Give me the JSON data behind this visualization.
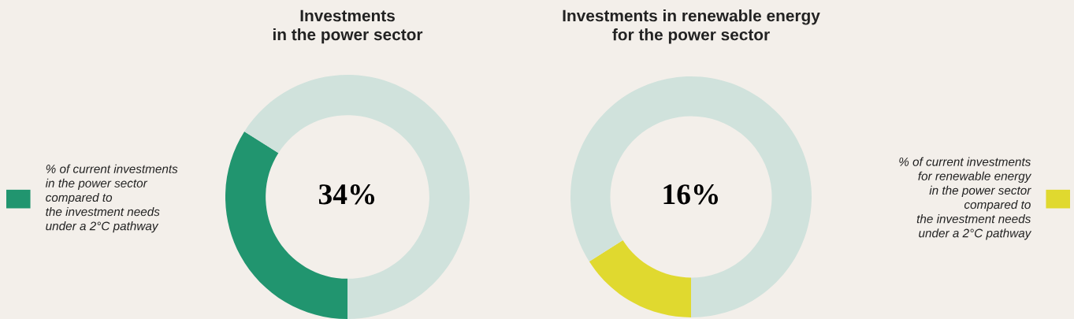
{
  "chart_data": [
    {
      "type": "donut",
      "title": "Investments\nin the power sector",
      "categories": [
        "% of current investments\nin the power sector\ncompared to\nthe investment needs\nunder a 2°C pathway",
        null
      ],
      "values": [
        34,
        66
      ],
      "colors": [
        "#21956f",
        "#d0e2dc"
      ],
      "value_labels": [
        "34%",
        null
      ],
      "legend": "left"
    },
    {
      "type": "donut",
      "title": "Investments in renewable energy\nfor the power sector",
      "categories": [
        "% of current investments\nfor renewable energy\nin the power sector\ncompared to\nthe investment needs\nunder a 2°C pathway",
        null
      ],
      "values": [
        16,
        84
      ],
      "colors": [
        "#e0d92f",
        "#d0e2dc"
      ],
      "value_labels": [
        "16%",
        null
      ],
      "legend": "right"
    }
  ]
}
